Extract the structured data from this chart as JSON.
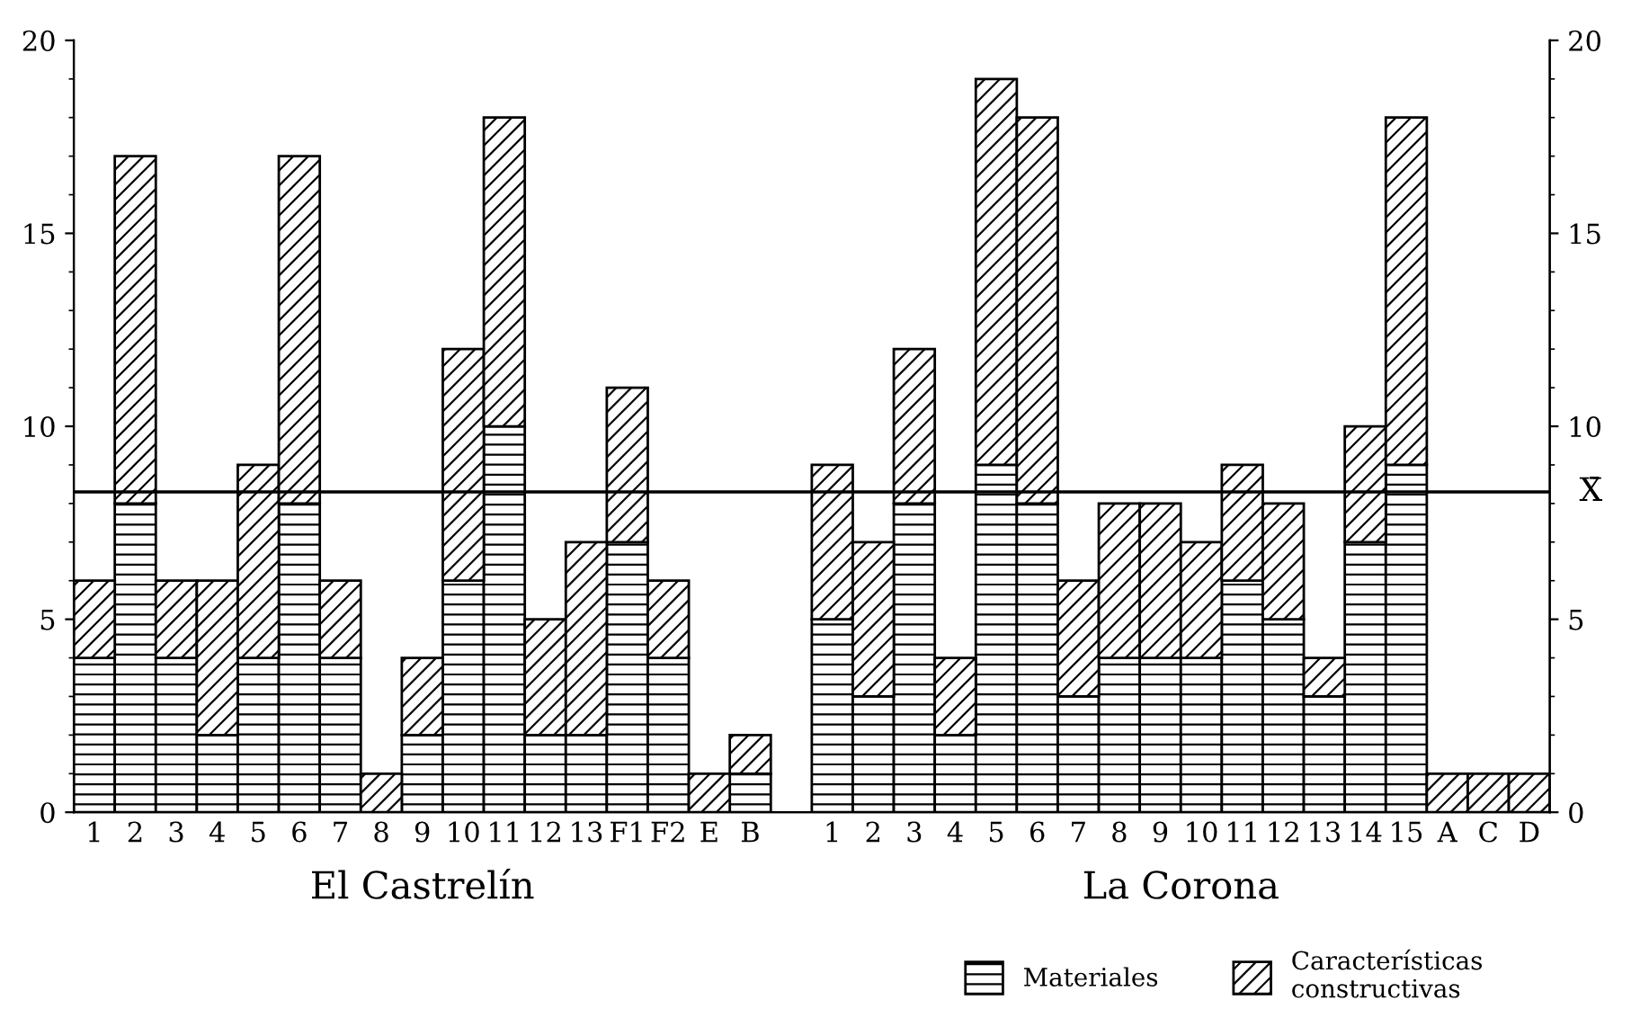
{
  "chart_data": {
    "type": "bar",
    "stacked": true,
    "categories": [
      "1",
      "2",
      "3",
      "4",
      "5",
      "6",
      "7",
      "8",
      "9",
      "10",
      "11",
      "12",
      "13",
      "F1",
      "F2",
      "E",
      "B",
      null,
      "1",
      "2",
      "3",
      "4",
      "5",
      "6",
      "7",
      "8",
      "9",
      "10",
      "11",
      "12",
      "13",
      "14",
      "15",
      "A",
      "C",
      "D"
    ],
    "series": [
      {
        "name": "Materiales",
        "color": "#000000",
        "values": [
          4,
          8,
          4,
          2,
          4,
          8,
          4,
          0,
          2,
          6,
          10,
          2,
          2,
          7,
          4,
          0,
          1,
          null,
          5,
          3,
          8,
          2,
          9,
          8,
          3,
          4,
          4,
          4,
          6,
          5,
          3,
          7,
          9,
          0,
          0,
          0
        ]
      },
      {
        "name": "Características\nconstructivas",
        "color": "#000000",
        "values": [
          2,
          9,
          2,
          4,
          5,
          9,
          2,
          1,
          2,
          6,
          8,
          3,
          5,
          4,
          2,
          1,
          1,
          null,
          4,
          4,
          4,
          2,
          10,
          10,
          3,
          4,
          4,
          3,
          3,
          3,
          1,
          3,
          9,
          1,
          1,
          1
        ]
      }
    ],
    "annotations": [
      "El Castrelín",
      "La Corona"
    ],
    "ref_lines": [
      {
        "axis": "y",
        "value": 8.3,
        "label": "X̄",
        "color": "#000000"
      }
    ],
    "ylim": [
      0,
      20
    ],
    "yticks": [
      0,
      5,
      10,
      15,
      20
    ],
    "y2lim": [
      0,
      20
    ],
    "y2ticks": [
      0,
      5,
      10,
      15,
      20
    ],
    "legend": "bottom right",
    "grid": false
  }
}
